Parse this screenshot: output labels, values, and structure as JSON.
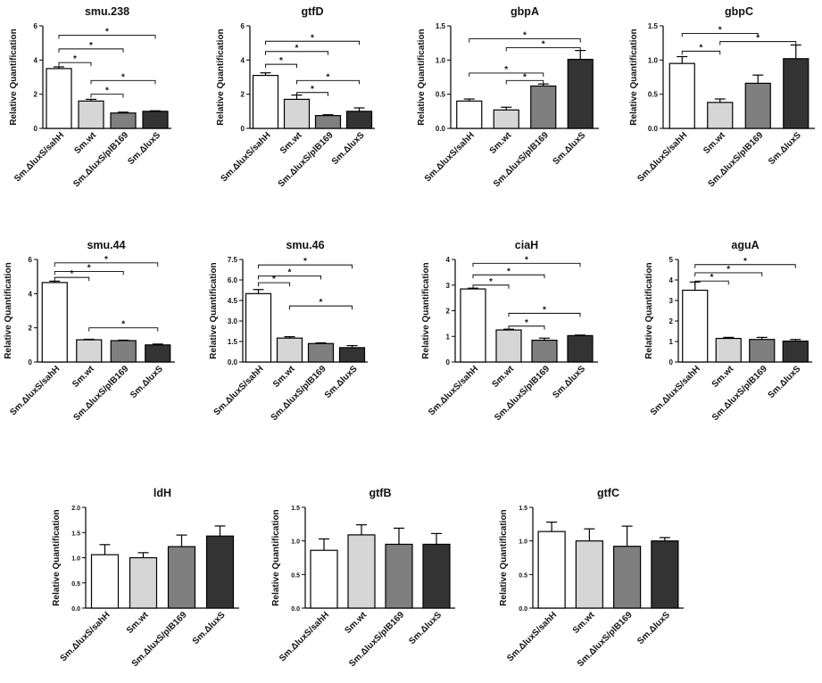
{
  "colors": {
    "wt": "#d6d6d6",
    "comp": "#ffffff",
    "plb": "#7f7f7f",
    "lux": "#333333",
    "stroke": "#000000"
  },
  "chart_data": [
    {
      "type": "bar",
      "title": "smu.238",
      "ylabel": "Relative Quantification",
      "categories": [
        "Sm.ΔluxS/sahH",
        "Sm.wt",
        "Sm.ΔluxS/plB169",
        "Sm.ΔluxS"
      ],
      "values": [
        3.5,
        1.6,
        0.9,
        1.0
      ],
      "errors": [
        0.1,
        0.1,
        0.05,
        0.03
      ],
      "ylim": [
        0,
        6
      ],
      "yticks": [
        "0",
        "2",
        "4",
        "6"
      ],
      "ytick_values": [
        0,
        2,
        4,
        6
      ],
      "significance": [
        {
          "from": 0,
          "to": 1,
          "y": 3.85,
          "label": "*"
        },
        {
          "from": 0,
          "to": 2,
          "y": 4.65,
          "label": "*"
        },
        {
          "from": 0,
          "to": 3,
          "y": 5.45,
          "label": "*"
        },
        {
          "from": 1,
          "to": 2,
          "y": 2.0,
          "label": "*"
        },
        {
          "from": 1,
          "to": 3,
          "y": 2.8,
          "label": "*"
        }
      ]
    },
    {
      "type": "bar",
      "title": "gtfD",
      "ylabel": "Relative Quantification",
      "categories": [
        "Sm.ΔluxS/sahH",
        "Sm.wt",
        "Sm.ΔluxS/plB169",
        "Sm.ΔluxS"
      ],
      "values": [
        3.1,
        1.7,
        0.75,
        1.0
      ],
      "errors": [
        0.15,
        0.25,
        0.05,
        0.2
      ],
      "ylim": [
        0,
        6
      ],
      "yticks": [
        "0",
        "2",
        "4",
        "6"
      ],
      "ytick_values": [
        0,
        2,
        4,
        6
      ],
      "significance": [
        {
          "from": 0,
          "to": 1,
          "y": 3.75,
          "label": "*"
        },
        {
          "from": 0,
          "to": 2,
          "y": 4.5,
          "label": "*"
        },
        {
          "from": 0,
          "to": 3,
          "y": 5.1,
          "label": "*"
        },
        {
          "from": 1,
          "to": 2,
          "y": 2.1,
          "label": "*"
        },
        {
          "from": 1,
          "to": 3,
          "y": 2.8,
          "label": "*"
        }
      ]
    },
    {
      "type": "bar",
      "title": "gbpA",
      "ylabel": "Relative Quantification",
      "categories": [
        "Sm.ΔluxS/sahH",
        "Sm.wt",
        "Sm.ΔluxS/plB169",
        "Sm.ΔluxS"
      ],
      "values": [
        0.4,
        0.27,
        0.62,
        1.01
      ],
      "errors": [
        0.03,
        0.04,
        0.03,
        0.13
      ],
      "ylim": [
        0,
        1.5
      ],
      "yticks": [
        "0.0",
        "0.5",
        "1.0",
        "1.5"
      ],
      "ytick_values": [
        0,
        0.5,
        1.0,
        1.5
      ],
      "significance": [
        {
          "from": 1,
          "to": 2,
          "y": 0.7,
          "label": "*"
        },
        {
          "from": 0,
          "to": 2,
          "y": 0.81,
          "label": "*"
        },
        {
          "from": 1,
          "to": 3,
          "y": 1.18,
          "label": "*"
        },
        {
          "from": 0,
          "to": 3,
          "y": 1.31,
          "label": "*"
        }
      ]
    },
    {
      "type": "bar",
      "title": "gbpC",
      "ylabel": "Relative Quantification",
      "categories": [
        "Sm.ΔluxS/sahH",
        "Sm.wt",
        "Sm.ΔluxS/plB169",
        "Sm.ΔluxS"
      ],
      "values": [
        0.95,
        0.38,
        0.66,
        1.02
      ],
      "errors": [
        0.1,
        0.05,
        0.12,
        0.2
      ],
      "ylim": [
        0,
        1.5
      ],
      "yticks": [
        "0.0",
        "0.5",
        "1.0",
        "1.5"
      ],
      "ytick_values": [
        0,
        0.5,
        1.0,
        1.5
      ],
      "significance": [
        {
          "from": 0,
          "to": 1,
          "y": 1.13,
          "label": "*"
        },
        {
          "from": 0,
          "to": 2,
          "y": 1.39,
          "label": "*"
        },
        {
          "from": 1,
          "to": 3,
          "y": 1.27,
          "label": "*"
        }
      ]
    },
    {
      "type": "bar",
      "title": "smu.44",
      "ylabel": "Relative Quantification",
      "categories": [
        "Sm.ΔluxS/sahH",
        "Sm.wt",
        "Sm.ΔluxS/plB169",
        "Sm.ΔluxS"
      ],
      "values": [
        4.65,
        1.3,
        1.25,
        1.0
      ],
      "errors": [
        0.08,
        0.03,
        0.03,
        0.05
      ],
      "ylim": [
        0,
        6
      ],
      "yticks": [
        "0",
        "2",
        "4",
        "6"
      ],
      "ytick_values": [
        0,
        2,
        4,
        6
      ],
      "significance": [
        {
          "from": 0,
          "to": 1,
          "y": 4.95,
          "label": "*"
        },
        {
          "from": 0,
          "to": 2,
          "y": 5.3,
          "label": "*"
        },
        {
          "from": 0,
          "to": 3,
          "y": 5.8,
          "label": "*"
        },
        {
          "from": 1,
          "to": 3,
          "y": 2.0,
          "label": "*"
        }
      ]
    },
    {
      "type": "bar",
      "title": "smu.46",
      "ylabel": "Relative Quantification",
      "categories": [
        "Sm.ΔluxS/sahH",
        "Sm.wt",
        "Sm.ΔluxS/plB169",
        "Sm.ΔluxS"
      ],
      "values": [
        5.0,
        1.75,
        1.35,
        1.05
      ],
      "errors": [
        0.3,
        0.1,
        0.05,
        0.15
      ],
      "ylim": [
        0,
        7.5
      ],
      "yticks": [
        "0.0",
        "1.5",
        "3.0",
        "4.5",
        "6.0",
        "7.5"
      ],
      "ytick_values": [
        0,
        1.5,
        3.0,
        4.5,
        6.0,
        7.5
      ],
      "significance": [
        {
          "from": 0,
          "to": 1,
          "y": 5.8,
          "label": "*"
        },
        {
          "from": 0,
          "to": 2,
          "y": 6.3,
          "label": "*"
        },
        {
          "from": 0,
          "to": 3,
          "y": 7.1,
          "label": "*"
        },
        {
          "from": 1,
          "to": 3,
          "y": 4.1,
          "label": "*"
        }
      ]
    },
    {
      "type": "bar",
      "title": "ciaH",
      "ylabel": "Relative Quantification",
      "categories": [
        "Sm.ΔluxS/sahH",
        "Sm.wt",
        "Sm.ΔluxS/plB169",
        "Sm.ΔluxS"
      ],
      "values": [
        2.85,
        1.25,
        0.85,
        1.03
      ],
      "errors": [
        0.03,
        0.03,
        0.08,
        0.02
      ],
      "ylim": [
        0,
        4
      ],
      "yticks": [
        "0",
        "1",
        "2",
        "3",
        "4"
      ],
      "ytick_values": [
        0,
        1,
        2,
        3,
        4
      ],
      "significance": [
        {
          "from": 0,
          "to": 1,
          "y": 3.0,
          "label": "*"
        },
        {
          "from": 0,
          "to": 2,
          "y": 3.4,
          "label": "*"
        },
        {
          "from": 0,
          "to": 3,
          "y": 3.85,
          "label": "*"
        },
        {
          "from": 1,
          "to": 2,
          "y": 1.4,
          "label": "*"
        },
        {
          "from": 1,
          "to": 3,
          "y": 1.9,
          "label": "*"
        }
      ]
    },
    {
      "type": "bar",
      "title": "aguA",
      "ylabel": "Relative Quantification",
      "categories": [
        "Sm.ΔluxS/sahH",
        "Sm.wt",
        "Sm.ΔluxS/plB169",
        "Sm.ΔluxS"
      ],
      "values": [
        3.5,
        1.15,
        1.1,
        1.02
      ],
      "errors": [
        0.4,
        0.05,
        0.1,
        0.08
      ],
      "ylim": [
        0,
        5
      ],
      "yticks": [
        "0",
        "1",
        "2",
        "3",
        "4",
        "5"
      ],
      "ytick_values": [
        0,
        1,
        2,
        3,
        4,
        5
      ],
      "significance": [
        {
          "from": 0,
          "to": 1,
          "y": 3.95,
          "label": "*"
        },
        {
          "from": 0,
          "to": 2,
          "y": 4.35,
          "label": "*"
        },
        {
          "from": 0,
          "to": 3,
          "y": 4.75,
          "label": "*"
        }
      ]
    },
    {
      "type": "bar",
      "title": "ldH",
      "ylabel": "Relative Quantification",
      "categories": [
        "Sm.ΔluxS/sahH",
        "Sm.wt",
        "Sm.ΔluxS/plB169",
        "Sm.ΔluxS"
      ],
      "values": [
        1.06,
        1.0,
        1.22,
        1.43
      ],
      "errors": [
        0.2,
        0.1,
        0.23,
        0.2
      ],
      "ylim": [
        0,
        2.0
      ],
      "yticks": [
        "0.0",
        "0.5",
        "1.0",
        "1.5",
        "2.0"
      ],
      "ytick_values": [
        0,
        0.5,
        1.0,
        1.5,
        2.0
      ],
      "significance": []
    },
    {
      "type": "bar",
      "title": "gtfB",
      "ylabel": "Relative Quantification",
      "categories": [
        "Sm.ΔluxS/sahH",
        "Sm.wt",
        "Sm.ΔluxS/plB169",
        "Sm.ΔluxS"
      ],
      "values": [
        0.86,
        1.09,
        0.95,
        0.95
      ],
      "errors": [
        0.17,
        0.15,
        0.24,
        0.16
      ],
      "ylim": [
        0,
        1.5
      ],
      "yticks": [
        "0.0",
        "0.5",
        "1.0",
        "1.5"
      ],
      "ytick_values": [
        0,
        0.5,
        1.0,
        1.5
      ],
      "significance": []
    },
    {
      "type": "bar",
      "title": "gtfC",
      "ylabel": "Relative Quantification",
      "categories": [
        "Sm.ΔluxS/sahH",
        "Sm.wt",
        "Sm.ΔluxS/plB169",
        "Sm.ΔluxS"
      ],
      "values": [
        1.14,
        1.0,
        0.92,
        1.0
      ],
      "errors": [
        0.14,
        0.18,
        0.3,
        0.05
      ],
      "ylim": [
        0,
        1.5
      ],
      "yticks": [
        "0.0",
        "0.5",
        "1.0",
        "1.5"
      ],
      "ytick_values": [
        0,
        0.5,
        1.0,
        1.5
      ],
      "significance": []
    }
  ]
}
